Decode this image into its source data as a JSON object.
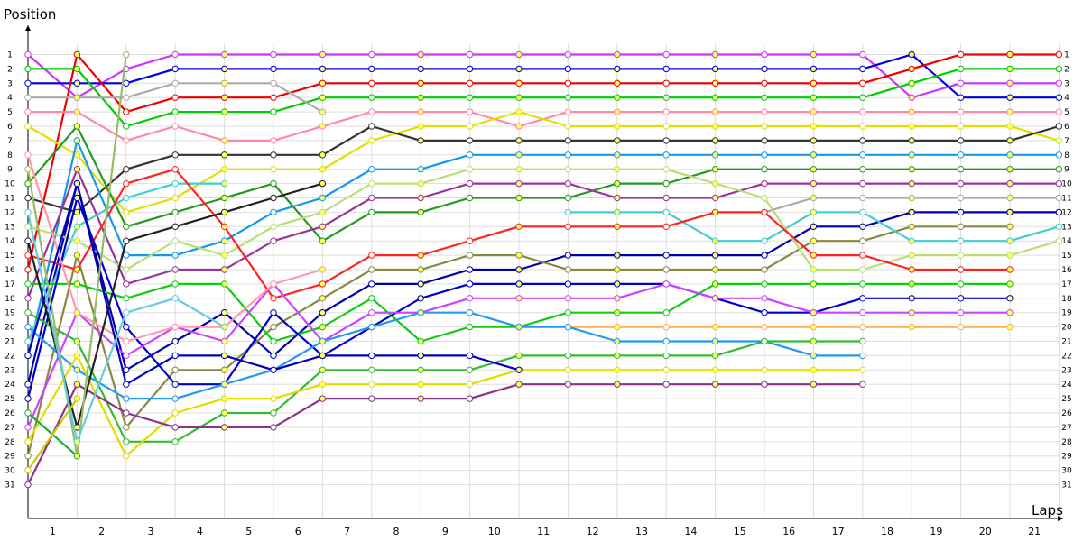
{
  "chart_data": {
    "type": "line",
    "ylabel": "Position",
    "xlabel": "Laps",
    "x_ticks": [
      "1",
      "2",
      "3",
      "4",
      "5",
      "6",
      "7",
      "8",
      "9",
      "10",
      "11",
      "12",
      "13",
      "14",
      "15",
      "16",
      "17",
      "18",
      "19",
      "20",
      "21"
    ],
    "y_ticks": [
      "1",
      "2",
      "3",
      "4",
      "5",
      "6",
      "7",
      "8",
      "9",
      "10",
      "11",
      "12",
      "13",
      "14",
      "15",
      "16",
      "17",
      "18",
      "19",
      "20",
      "21",
      "22",
      "23",
      "24",
      "25",
      "26",
      "27",
      "28",
      "29",
      "30",
      "31"
    ],
    "x_range": [
      0,
      21
    ],
    "y_range": [
      1,
      31
    ],
    "y_inverted": true,
    "grid": true,
    "series": [
      {
        "color": "#cc33ff",
        "values": [
          1,
          4,
          2,
          1,
          1,
          1,
          1,
          1,
          1,
          1,
          1,
          1,
          1,
          1,
          1,
          1,
          1,
          1,
          4,
          3,
          3,
          3
        ]
      },
      {
        "color": "#0000dd",
        "values": [
          3,
          3,
          3,
          2,
          2,
          2,
          2,
          2,
          2,
          2,
          2,
          2,
          2,
          2,
          2,
          2,
          2,
          2,
          1,
          4,
          4,
          4
        ]
      },
      {
        "color": "#ee0000",
        "values": [
          16,
          1,
          5,
          4,
          4,
          4,
          3,
          3,
          3,
          3,
          3,
          3,
          3,
          3,
          3,
          3,
          3,
          3,
          2,
          1,
          1,
          1
        ]
      },
      {
        "color": "#00cc00",
        "values": [
          2,
          2,
          6,
          5,
          5,
          5,
          4,
          4,
          4,
          4,
          4,
          4,
          4,
          4,
          4,
          4,
          4,
          4,
          3,
          2,
          2,
          2
        ]
      },
      {
        "color": "#ff88aa",
        "values": [
          5,
          5,
          7,
          6,
          7,
          7,
          6,
          5,
          5,
          5,
          6,
          5,
          5,
          5,
          5,
          5,
          5,
          5,
          5,
          5,
          5,
          5
        ]
      },
      {
        "color": "#e0e000",
        "values": [
          6,
          8,
          12,
          11,
          9,
          9,
          9,
          7,
          6,
          6,
          5,
          6,
          6,
          6,
          6,
          6,
          6,
          6,
          6,
          6,
          6,
          7
        ]
      },
      {
        "color": "#333333",
        "values": [
          11,
          12,
          9,
          8,
          8,
          8,
          8,
          6,
          7,
          7,
          7,
          7,
          7,
          7,
          7,
          7,
          7,
          7,
          7,
          7,
          7,
          6
        ]
      },
      {
        "color": "#1199ee",
        "values": [
          22,
          7,
          15,
          15,
          14,
          12,
          11,
          9,
          9,
          8,
          8,
          8,
          8,
          8,
          8,
          8,
          8,
          8,
          8,
          8,
          8,
          8
        ]
      },
      {
        "color": "#229922",
        "values": [
          10,
          6,
          13,
          12,
          11,
          10,
          14,
          12,
          12,
          11,
          11,
          11,
          10,
          10,
          9,
          9,
          9,
          9,
          9,
          9,
          9,
          9
        ]
      },
      {
        "color": "#993399",
        "values": [
          18,
          9,
          17,
          16,
          16,
          14,
          13,
          11,
          11,
          10,
          10,
          10,
          11,
          11,
          11,
          10,
          10,
          10,
          10,
          10,
          10,
          10
        ]
      },
      {
        "color": "#aaaaaa",
        "values": [
          4,
          4,
          4,
          3,
          3,
          3,
          5,
          null,
          null,
          null,
          null,
          null,
          null,
          null,
          null,
          12,
          11,
          11,
          11,
          11,
          11,
          11
        ]
      },
      {
        "color": "#0000aa",
        "values": [
          24,
          10,
          23,
          21,
          19,
          22,
          19,
          17,
          17,
          16,
          16,
          15,
          15,
          15,
          15,
          15,
          13,
          13,
          12,
          12,
          12,
          12
        ]
      },
      {
        "color": "#888844",
        "values": [
          29,
          15,
          27,
          23,
          23,
          20,
          18,
          16,
          16,
          15,
          15,
          16,
          16,
          16,
          16,
          16,
          14,
          14,
          13,
          13,
          13,
          null
        ]
      },
      {
        "color": "#44cccc",
        "values": [
          21,
          13,
          11,
          10,
          10,
          null,
          null,
          null,
          null,
          null,
          null,
          12,
          12,
          12,
          14,
          14,
          12,
          12,
          14,
          14,
          14,
          13
        ]
      },
      {
        "color": "#bbdd77",
        "values": [
          13,
          14,
          16,
          14,
          15,
          13,
          12,
          10,
          10,
          9,
          9,
          9,
          9,
          9,
          10,
          11,
          16,
          16,
          15,
          15,
          15,
          14
        ]
      },
      {
        "color": "#ff2222",
        "values": [
          15,
          16,
          10,
          9,
          13,
          18,
          17,
          15,
          15,
          14,
          13,
          13,
          13,
          13,
          12,
          12,
          15,
          15,
          16,
          16,
          16,
          null
        ]
      },
      {
        "color": "#11cc11",
        "values": [
          17,
          17,
          18,
          17,
          17,
          21,
          20,
          18,
          21,
          20,
          20,
          19,
          19,
          19,
          17,
          17,
          17,
          17,
          17,
          17,
          17,
          null
        ]
      },
      {
        "color": "#0000cc",
        "values": [
          25,
          11,
          20,
          24,
          24,
          19,
          22,
          20,
          18,
          17,
          17,
          17,
          17,
          17,
          18,
          19,
          19,
          18,
          18,
          18,
          18,
          null
        ]
      },
      {
        "color": "#cc44ff",
        "values": [
          27,
          19,
          22,
          20,
          21,
          17,
          21,
          19,
          19,
          18,
          18,
          18,
          18,
          17,
          18,
          18,
          19,
          19,
          19,
          19,
          19,
          null
        ]
      },
      {
        "color": "#ff99aa",
        "values": [
          8,
          19,
          21,
          20,
          20,
          17,
          16,
          null,
          null,
          null,
          null,
          null,
          null,
          null,
          null,
          null,
          null,
          null,
          null,
          null,
          null,
          null
        ]
      },
      {
        "color": "#ffaa55",
        "values": [
          null,
          null,
          null,
          null,
          null,
          null,
          null,
          null,
          null,
          null,
          null,
          20,
          20,
          20,
          20,
          20,
          20,
          20,
          20,
          20,
          20,
          null
        ]
      },
      {
        "color": "#2299ee",
        "values": [
          20,
          23,
          25,
          25,
          24,
          23,
          21,
          20,
          19,
          19,
          20,
          20,
          21,
          21,
          21,
          21,
          22,
          22,
          null,
          null,
          null,
          null
        ]
      },
      {
        "color": "#33bb33",
        "values": [
          19,
          21,
          28,
          28,
          26,
          26,
          23,
          23,
          23,
          23,
          22,
          22,
          22,
          22,
          22,
          21,
          21,
          21,
          null,
          null,
          null,
          null
        ]
      },
      {
        "color": "#dddd00",
        "values": [
          28,
          22,
          29,
          26,
          25,
          25,
          24,
          24,
          24,
          24,
          23,
          23,
          23,
          23,
          23,
          23,
          23,
          23,
          null,
          null,
          null,
          null
        ]
      },
      {
        "color": "#883388",
        "values": [
          31,
          24,
          26,
          27,
          27,
          27,
          25,
          25,
          25,
          25,
          24,
          24,
          24,
          24,
          24,
          24,
          24,
          24,
          null,
          null,
          null,
          null
        ]
      },
      {
        "color": "#222222",
        "values": [
          14,
          27,
          14,
          13,
          12,
          11,
          10,
          null,
          null,
          null,
          null,
          null,
          null,
          null,
          null,
          null,
          null,
          null,
          null,
          null,
          null,
          null
        ]
      },
      {
        "color": "#0000bb",
        "values": [
          22,
          10,
          24,
          22,
          22,
          23,
          22,
          22,
          22,
          22,
          23,
          null,
          null,
          null,
          null,
          null,
          null,
          null,
          null,
          null,
          null,
          null
        ]
      },
      {
        "color": "#99bb66",
        "values": [
          9,
          29,
          1,
          null,
          null,
          null,
          null,
          null,
          null,
          null,
          null,
          null,
          null,
          null,
          null,
          null,
          null,
          null,
          null,
          null,
          null,
          null
        ]
      },
      {
        "color": "#66ccdd",
        "values": [
          12,
          28,
          19,
          18,
          20,
          null,
          null,
          null,
          null,
          null,
          null,
          null,
          null,
          null,
          null,
          null,
          null,
          null,
          null,
          null,
          null,
          null
        ]
      },
      {
        "color": "#22aa44",
        "values": [
          26,
          29,
          null,
          null,
          null,
          null,
          null,
          null,
          null,
          null,
          null,
          null,
          null,
          null,
          null,
          null,
          null,
          null,
          null,
          null,
          null,
          null
        ]
      },
      {
        "color": "#cccc00",
        "values": [
          30,
          25,
          null,
          null,
          null,
          null,
          null,
          null,
          null,
          null,
          null,
          null,
          null,
          null,
          null,
          null,
          null,
          null,
          null,
          null,
          null,
          null
        ]
      }
    ]
  }
}
